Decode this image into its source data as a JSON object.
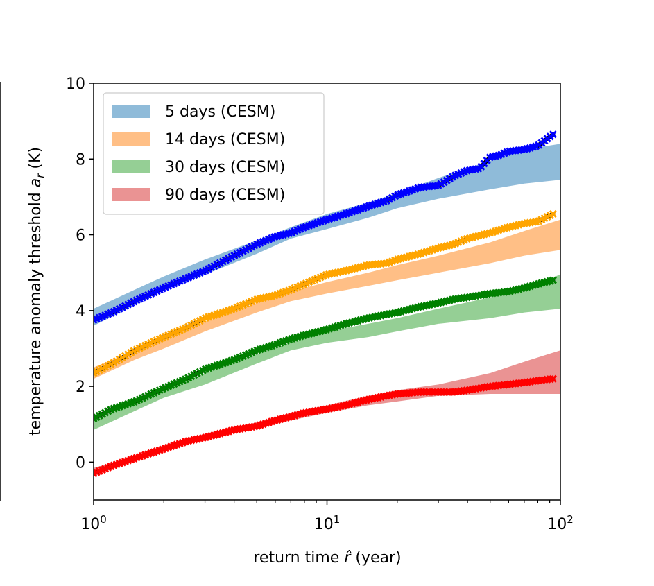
{
  "chart_data": {
    "type": "scatter",
    "xscale": "log",
    "xlabel": "return time r̂ (year)",
    "ylabel": "temperature anomaly threshold a_r (K)",
    "xlim": [
      1,
      100
    ],
    "ylim": [
      -1,
      10
    ],
    "x_ticks": [
      {
        "value": 1,
        "base": "10",
        "exp": "0"
      },
      {
        "value": 10,
        "base": "10",
        "exp": "1"
      },
      {
        "value": 100,
        "base": "10",
        "exp": "2"
      }
    ],
    "y_ticks": [
      {
        "value": 0,
        "label": "0"
      },
      {
        "value": 2,
        "label": "2"
      },
      {
        "value": 4,
        "label": "4"
      },
      {
        "value": 6,
        "label": "6"
      },
      {
        "value": 8,
        "label": "8"
      },
      {
        "value": 10,
        "label": "10"
      }
    ],
    "legend": {
      "position": "upper-left",
      "entries": [
        {
          "label": "5 days (CESM)",
          "color": "#1f77b4"
        },
        {
          "label": "14 days (CESM)",
          "color": "#ff7f0e"
        },
        {
          "label": "30 days (CESM)",
          "color": "#2ca02c"
        },
        {
          "label": "90 days (CESM)",
          "color": "#d62728"
        }
      ]
    },
    "band_opacity": 0.5,
    "series": [
      {
        "name": "5 days",
        "band_color": "#1f77b4",
        "marker_color": "#0000ff",
        "band_x": [
          1,
          1.5,
          2,
          3,
          5,
          7,
          10,
          15,
          20,
          30,
          50,
          70,
          100
        ],
        "band_lower": [
          3.6,
          4.15,
          4.55,
          4.95,
          5.5,
          5.9,
          6.15,
          6.45,
          6.7,
          6.95,
          7.2,
          7.35,
          7.45
        ],
        "band_upper": [
          4.05,
          4.55,
          4.9,
          5.35,
          5.85,
          6.2,
          6.55,
          6.85,
          7.1,
          7.5,
          7.95,
          8.25,
          8.4
        ],
        "marker_x": [
          1,
          1.2,
          1.5,
          2,
          2.5,
          3,
          4,
          5,
          6,
          7,
          8,
          10,
          12,
          15,
          18,
          20,
          25,
          30,
          35,
          40,
          45,
          50,
          55,
          60,
          70,
          80,
          93
        ],
        "marker_y": [
          3.75,
          3.95,
          4.25,
          4.6,
          4.85,
          5.05,
          5.45,
          5.75,
          5.95,
          6.05,
          6.2,
          6.4,
          6.55,
          6.75,
          6.9,
          7.05,
          7.25,
          7.3,
          7.55,
          7.7,
          7.75,
          8.05,
          8.1,
          8.2,
          8.25,
          8.35,
          8.65
        ]
      },
      {
        "name": "14 days",
        "band_color": "#ff7f0e",
        "marker_color": "#ffa500",
        "band_x": [
          1,
          1.5,
          2,
          3,
          5,
          7,
          10,
          15,
          20,
          30,
          50,
          70,
          100
        ],
        "band_lower": [
          2.2,
          2.7,
          3.0,
          3.45,
          3.95,
          4.25,
          4.45,
          4.65,
          4.8,
          5.0,
          5.25,
          5.45,
          5.6
        ],
        "band_upper": [
          2.5,
          2.95,
          3.3,
          3.7,
          4.2,
          4.5,
          4.75,
          5.0,
          5.2,
          5.45,
          5.8,
          6.1,
          6.4
        ],
        "marker_x": [
          1,
          1.2,
          1.5,
          2,
          2.5,
          3,
          4,
          5,
          6,
          7,
          8,
          10,
          12,
          15,
          18,
          20,
          25,
          30,
          35,
          40,
          50,
          60,
          70,
          80,
          93
        ],
        "marker_y": [
          2.35,
          2.6,
          2.95,
          3.3,
          3.55,
          3.8,
          4.05,
          4.3,
          4.4,
          4.55,
          4.7,
          4.95,
          5.05,
          5.2,
          5.25,
          5.35,
          5.5,
          5.65,
          5.75,
          5.9,
          6.05,
          6.2,
          6.3,
          6.35,
          6.55
        ]
      },
      {
        "name": "30 days",
        "band_color": "#2ca02c",
        "marker_color": "#008000",
        "band_x": [
          1,
          1.5,
          2,
          3,
          5,
          7,
          10,
          15,
          20,
          30,
          50,
          70,
          100
        ],
        "band_lower": [
          0.85,
          1.35,
          1.7,
          2.05,
          2.6,
          2.95,
          3.15,
          3.3,
          3.45,
          3.65,
          3.8,
          3.95,
          4.05
        ],
        "band_upper": [
          1.2,
          1.6,
          1.9,
          2.35,
          2.85,
          3.15,
          3.45,
          3.65,
          3.8,
          4.05,
          4.35,
          4.6,
          4.95
        ],
        "marker_x": [
          1,
          1.2,
          1.5,
          2,
          2.5,
          3,
          4,
          5,
          6,
          7,
          8,
          10,
          12,
          15,
          18,
          20,
          25,
          30,
          35,
          40,
          50,
          60,
          70,
          80,
          93
        ],
        "marker_y": [
          1.15,
          1.4,
          1.6,
          1.95,
          2.2,
          2.45,
          2.7,
          2.95,
          3.1,
          3.25,
          3.35,
          3.5,
          3.65,
          3.8,
          3.9,
          3.95,
          4.1,
          4.2,
          4.3,
          4.35,
          4.45,
          4.5,
          4.6,
          4.7,
          4.8
        ]
      },
      {
        "name": "90 days",
        "band_color": "#d62728",
        "marker_color": "#ff0000",
        "band_x": [
          1,
          1.5,
          2,
          3,
          5,
          7,
          10,
          15,
          20,
          30,
          50,
          70,
          100
        ],
        "band_lower": [
          -0.35,
          0.05,
          0.35,
          0.65,
          0.9,
          1.1,
          1.3,
          1.5,
          1.6,
          1.75,
          1.8,
          1.8,
          1.8
        ],
        "band_upper": [
          -0.15,
          0.15,
          0.45,
          0.75,
          1.05,
          1.3,
          1.5,
          1.75,
          1.9,
          2.05,
          2.35,
          2.65,
          2.95
        ],
        "marker_x": [
          1,
          1.2,
          1.5,
          2,
          2.5,
          3,
          4,
          5,
          6,
          7,
          8,
          10,
          12,
          15,
          18,
          20,
          25,
          30,
          35,
          40,
          50,
          60,
          70,
          80,
          93
        ],
        "marker_y": [
          -0.3,
          -0.1,
          0.1,
          0.35,
          0.55,
          0.65,
          0.85,
          0.95,
          1.1,
          1.2,
          1.3,
          1.4,
          1.5,
          1.65,
          1.75,
          1.8,
          1.85,
          1.85,
          1.85,
          1.9,
          2.0,
          2.05,
          2.1,
          2.15,
          2.2
        ]
      }
    ]
  }
}
